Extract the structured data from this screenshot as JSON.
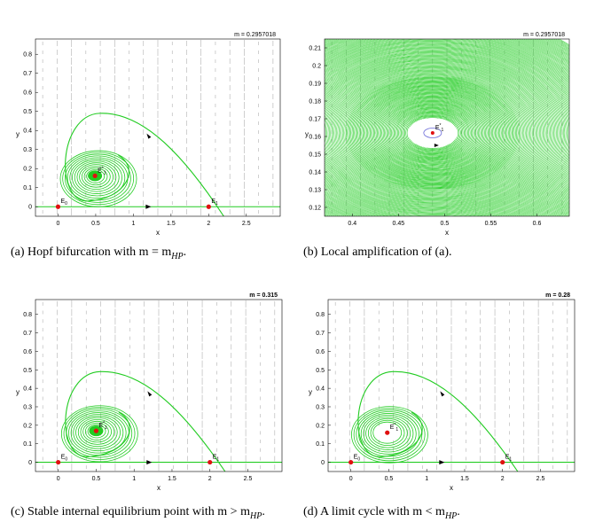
{
  "chart_data": [
    {
      "type": "line",
      "title": "m = 0.2957018",
      "xlabel": "x",
      "ylabel": "y",
      "xlim": [
        -0.3,
        2.95
      ],
      "ylim": [
        -0.05,
        0.88
      ],
      "xticks": [
        "0",
        "0.5",
        "1",
        "1.5",
        "2",
        "2.5"
      ],
      "yticks": [
        "0",
        "0.1",
        "0.2",
        "0.3",
        "0.4",
        "0.5",
        "0.6",
        "0.7",
        "0.8"
      ],
      "equilibria": [
        {
          "name": "E0",
          "sub": "0",
          "x": 0,
          "y": 0
        },
        {
          "name": "E1",
          "sub": "1",
          "x": 2.0,
          "y": 0
        },
        {
          "name": "E*1",
          "sub": "1",
          "x": 0.49,
          "y": 0.162
        }
      ],
      "style": "hopf",
      "title_bold": false,
      "caption": "(a) Hopf bifurcation with m = m",
      "caption_sub": "HP",
      "caption_end": "."
    },
    {
      "type": "line",
      "title": "m = 0.2957018",
      "xlabel": "x",
      "ylabel": "y",
      "xlim": [
        0.37,
        0.635
      ],
      "ylim": [
        0.115,
        0.215
      ],
      "xticks": [
        "0.4",
        "0.45",
        "0.5",
        "0.55",
        "0.6"
      ],
      "yticks": [
        "0.12",
        "0.13",
        "0.14",
        "0.15",
        "0.16",
        "0.17",
        "0.18",
        "0.19",
        "0.2",
        "0.21"
      ],
      "equilibria": [
        {
          "name": "E*1",
          "sub": "1",
          "x": 0.487,
          "y": 0.162
        }
      ],
      "style": "zoom",
      "title_bold": false,
      "caption": "(b) Local amplification of (a).",
      "caption_sub": "",
      "caption_end": ""
    },
    {
      "type": "line",
      "title": "m = 0.315",
      "xlabel": "x",
      "ylabel": "y",
      "xlim": [
        -0.3,
        2.95
      ],
      "ylim": [
        -0.05,
        0.88
      ],
      "xticks": [
        "0",
        "0.5",
        "1",
        "1.5",
        "2",
        "2.5"
      ],
      "yticks": [
        "0",
        "0.1",
        "0.2",
        "0.3",
        "0.4",
        "0.5",
        "0.6",
        "0.7",
        "0.8"
      ],
      "equilibria": [
        {
          "name": "E0",
          "sub": "0",
          "x": 0,
          "y": 0
        },
        {
          "name": "E1",
          "sub": "1",
          "x": 2.0,
          "y": 0
        },
        {
          "name": "E*1",
          "sub": "1",
          "x": 0.5,
          "y": 0.17
        }
      ],
      "style": "stable",
      "title_bold": true,
      "caption": "(c) Stable internal equilibrium point with m > m",
      "caption_sub": "HP",
      "caption_end": "."
    },
    {
      "type": "line",
      "title": "m = 0.28",
      "xlabel": "x",
      "ylabel": "y",
      "xlim": [
        -0.3,
        2.95
      ],
      "ylim": [
        -0.05,
        0.88
      ],
      "xticks": [
        "0",
        "0.5",
        "1",
        "1.5",
        "2",
        "2.5"
      ],
      "yticks": [
        "0",
        "0.1",
        "0.2",
        "0.3",
        "0.4",
        "0.5",
        "0.6",
        "0.7",
        "0.8"
      ],
      "equilibria": [
        {
          "name": "E0",
          "sub": "0",
          "x": 0,
          "y": 0
        },
        {
          "name": "E1",
          "sub": "1",
          "x": 2.0,
          "y": 0
        },
        {
          "name": "E*1",
          "sub": "1",
          "x": 0.48,
          "y": 0.16
        }
      ],
      "style": "cycle",
      "title_bold": true,
      "caption": "(d) A limit cycle with m < m",
      "caption_sub": "HP",
      "caption_end": "."
    }
  ],
  "colors": {
    "trajectory": "#22cc22",
    "equilibrium": "#e01010",
    "arrows": "#b0b0b0",
    "axis": "#000000"
  }
}
